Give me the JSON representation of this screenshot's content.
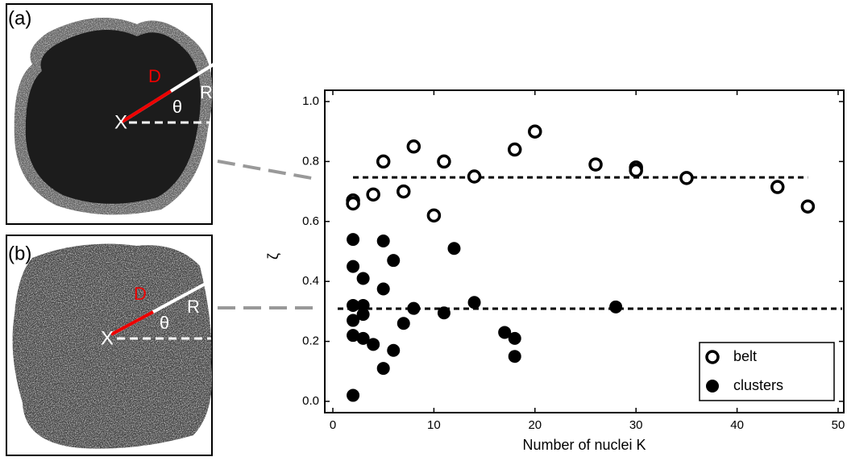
{
  "panels": [
    {
      "label": "(a)",
      "d": "D",
      "r": "R",
      "theta": "θ",
      "x": "X"
    },
    {
      "label": "(b)",
      "d": "D",
      "r": "R",
      "theta": "θ",
      "x": "X"
    }
  ],
  "chart_data": {
    "type": "scatter",
    "xlabel": "Number of nuclei  K",
    "ylabel": "ζ",
    "xlim": [
      0,
      50
    ],
    "xticks": [
      0,
      10,
      20,
      30,
      40,
      50
    ],
    "ylim": [
      0,
      1
    ],
    "yticks": [
      {
        "value": 0,
        "label": "0.0"
      },
      {
        "value": 0.2,
        "label": "0.2"
      },
      {
        "value": 0.4,
        "label": "0.4"
      },
      {
        "value": 0.6,
        "label": "0.6"
      },
      {
        "value": 0.8,
        "label": "0.8"
      },
      {
        "value": 1,
        "label": "1.0"
      }
    ],
    "legend": "lower right",
    "series": [
      {
        "name": "belt",
        "color": "#000000",
        "marker": "open",
        "x": [
          2,
          2,
          4,
          5,
          7,
          8,
          10,
          11,
          14,
          18,
          20,
          26,
          30,
          30,
          35,
          44,
          47
        ],
        "values": [
          0.67,
          0.66,
          0.69,
          0.8,
          0.7,
          0.85,
          0.62,
          0.8,
          0.75,
          0.84,
          0.9,
          0.79,
          0.78,
          0.77,
          0.745,
          0.715,
          0.65
        ]
      },
      {
        "name": "clusters",
        "color": "#000000",
        "marker": "filled",
        "x": [
          2,
          2,
          2,
          2,
          2,
          2,
          3,
          3,
          3,
          3,
          4,
          5,
          5,
          5,
          6,
          6,
          7,
          8,
          11,
          12,
          14,
          17,
          18,
          18,
          28
        ],
        "values": [
          0.54,
          0.45,
          0.32,
          0.27,
          0.22,
          0.02,
          0.41,
          0.32,
          0.29,
          0.21,
          0.19,
          0.535,
          0.375,
          0.11,
          0.47,
          0.17,
          0.26,
          0.31,
          0.295,
          0.51,
          0.33,
          0.23,
          0.21,
          0.15,
          0.315
        ]
      }
    ],
    "hlines": [
      0.747,
      0.309
    ]
  }
}
